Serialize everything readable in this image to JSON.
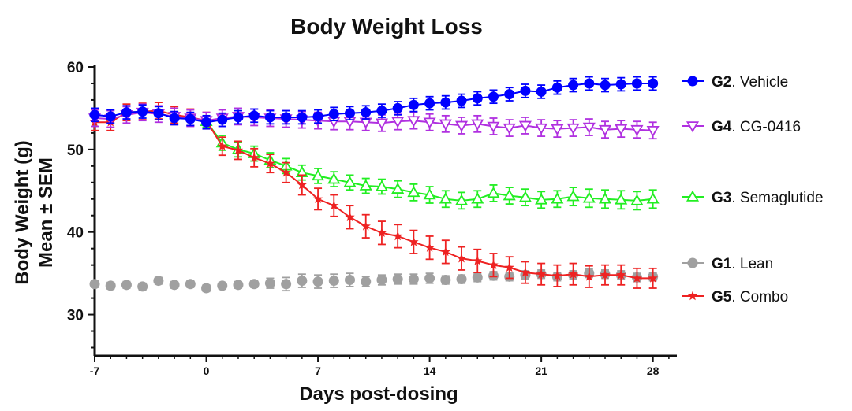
{
  "chart_data": {
    "type": "line",
    "title": "Body Weight Loss",
    "xlabel": "Days post-dosing",
    "ylabel_line1": "Body Weight (g)",
    "ylabel_line2": "Mean ± SEM",
    "xlim": [
      -7,
      29.5
    ],
    "ylim": [
      25,
      60
    ],
    "xticks": [
      -7,
      0,
      7,
      14,
      21,
      28
    ],
    "yticks": [
      30,
      40,
      50,
      60
    ],
    "legend_position": "right",
    "x": [
      -7,
      -6,
      -5,
      -4,
      -3,
      -2,
      -1,
      0,
      1,
      2,
      3,
      4,
      5,
      6,
      7,
      8,
      9,
      10,
      11,
      12,
      13,
      14,
      15,
      16,
      17,
      18,
      19,
      20,
      21,
      22,
      23,
      24,
      25,
      26,
      27,
      28
    ],
    "series": [
      {
        "id": "G2",
        "group": "G2",
        "name": ". Vehicle",
        "color": "#0000ff",
        "marker": "circle",
        "line": true,
        "values": [
          54.2,
          54.0,
          54.5,
          54.6,
          54.4,
          53.8,
          53.7,
          53.3,
          53.6,
          53.9,
          54.1,
          53.9,
          53.9,
          53.9,
          54.0,
          54.3,
          54.4,
          54.5,
          54.7,
          55.0,
          55.4,
          55.6,
          55.7,
          55.9,
          56.2,
          56.4,
          56.7,
          57.1,
          57.0,
          57.5,
          57.8,
          58.0,
          57.8,
          57.9,
          58.0,
          58.0
        ],
        "errors": [
          0.8,
          0.8,
          0.8,
          0.8,
          0.8,
          0.8,
          0.8,
          0.8,
          0.8,
          0.8,
          0.8,
          0.8,
          0.8,
          0.8,
          0.8,
          0.8,
          0.8,
          0.8,
          0.8,
          0.8,
          0.8,
          0.8,
          0.8,
          0.8,
          0.8,
          0.8,
          0.8,
          0.8,
          0.8,
          0.8,
          0.8,
          0.8,
          0.8,
          0.8,
          0.8,
          0.8
        ]
      },
      {
        "id": "G4",
        "group": "G4",
        "name": ". CG-0416",
        "color": "#b030e0",
        "marker": "triangle-down",
        "line": true,
        "values": [
          53.8,
          53.7,
          54.2,
          54.5,
          54.3,
          54.0,
          53.8,
          53.5,
          53.8,
          54.0,
          53.9,
          53.8,
          53.7,
          53.6,
          53.5,
          53.4,
          53.4,
          53.3,
          53.2,
          53.4,
          53.5,
          53.3,
          53.1,
          52.9,
          53.1,
          52.8,
          52.6,
          52.9,
          52.6,
          52.5,
          52.6,
          52.7,
          52.4,
          52.5,
          52.4,
          52.3
        ],
        "errors": [
          1.0,
          1.0,
          1.0,
          1.0,
          1.0,
          1.0,
          1.0,
          1.0,
          1.0,
          1.0,
          1.0,
          1.0,
          1.0,
          1.0,
          1.0,
          1.0,
          1.0,
          1.0,
          1.0,
          1.0,
          1.0,
          1.0,
          1.0,
          1.0,
          1.0,
          1.0,
          1.0,
          1.0,
          1.0,
          1.0,
          1.0,
          1.0,
          1.0,
          1.0,
          1.0,
          1.0
        ]
      },
      {
        "id": "G3",
        "group": "G3",
        "name": ". Semaglutide",
        "color": "#22ee22",
        "marker": "triangle-up",
        "line": true,
        "values": [
          null,
          null,
          null,
          null,
          null,
          null,
          null,
          53.4,
          50.8,
          50.0,
          49.5,
          48.7,
          48.0,
          47.2,
          46.8,
          46.4,
          46.0,
          45.6,
          45.5,
          45.2,
          44.8,
          44.5,
          44.0,
          43.8,
          44.0,
          44.7,
          44.4,
          44.2,
          43.9,
          44.0,
          44.3,
          44.1,
          44.0,
          43.9,
          43.8,
          44.0
        ],
        "errors": [
          null,
          null,
          null,
          null,
          null,
          null,
          null,
          0.7,
          0.9,
          0.9,
          0.9,
          0.9,
          0.9,
          0.9,
          0.9,
          0.9,
          0.9,
          0.9,
          0.9,
          1.0,
          1.0,
          1.0,
          1.0,
          1.0,
          1.0,
          1.0,
          1.0,
          1.0,
          1.0,
          1.0,
          1.1,
          1.1,
          1.1,
          1.1,
          1.1,
          1.1
        ]
      },
      {
        "id": "G1",
        "group": "G1",
        "name": ". Lean",
        "color": "#a0a0a0",
        "marker": "circle",
        "line": false,
        "values": [
          33.7,
          33.5,
          33.6,
          33.4,
          34.1,
          33.6,
          33.7,
          33.2,
          33.5,
          33.6,
          33.7,
          33.8,
          33.7,
          34.1,
          34.0,
          34.1,
          34.2,
          34.0,
          34.2,
          34.3,
          34.3,
          34.4,
          34.2,
          34.3,
          34.5,
          34.7,
          34.6,
          34.8,
          34.9,
          34.6,
          34.8,
          35.0,
          34.9,
          34.8,
          34.5,
          34.6
        ],
        "errors": [
          0.4,
          0.4,
          0.4,
          0.4,
          0.4,
          0.4,
          0.4,
          0.4,
          0.4,
          0.4,
          0.4,
          0.6,
          0.8,
          0.8,
          0.8,
          0.8,
          0.8,
          0.6,
          0.6,
          0.6,
          0.6,
          0.6,
          0.5,
          0.5,
          0.5,
          0.5,
          0.5,
          0.5,
          0.5,
          0.5,
          0.5,
          0.5,
          0.5,
          0.5,
          0.5,
          0.5
        ]
      },
      {
        "id": "G5",
        "group": "G5",
        "name": ". Combo",
        "color": "#ee2222",
        "marker": "star",
        "line": true,
        "values": [
          53.3,
          53.3,
          54.5,
          54.6,
          54.7,
          54.2,
          53.9,
          53.5,
          50.4,
          49.9,
          49.0,
          48.3,
          47.2,
          45.7,
          44.0,
          43.2,
          41.8,
          40.7,
          39.9,
          39.5,
          38.8,
          38.1,
          37.6,
          36.8,
          36.5,
          36.0,
          35.7,
          35.1,
          34.9,
          34.7,
          34.9,
          34.6,
          34.8,
          34.8,
          34.4,
          34.4
        ],
        "errors": [
          1.0,
          1.0,
          1.0,
          1.0,
          1.0,
          1.0,
          1.0,
          1.0,
          1.1,
          1.1,
          1.1,
          1.1,
          1.2,
          1.2,
          1.3,
          1.3,
          1.4,
          1.4,
          1.4,
          1.4,
          1.4,
          1.4,
          1.4,
          1.4,
          1.4,
          1.4,
          1.3,
          1.3,
          1.3,
          1.3,
          1.3,
          1.3,
          1.2,
          1.2,
          1.2,
          1.2
        ]
      }
    ],
    "legend_order": [
      "G2",
      "G4",
      "G3",
      "G1",
      "G5"
    ]
  }
}
